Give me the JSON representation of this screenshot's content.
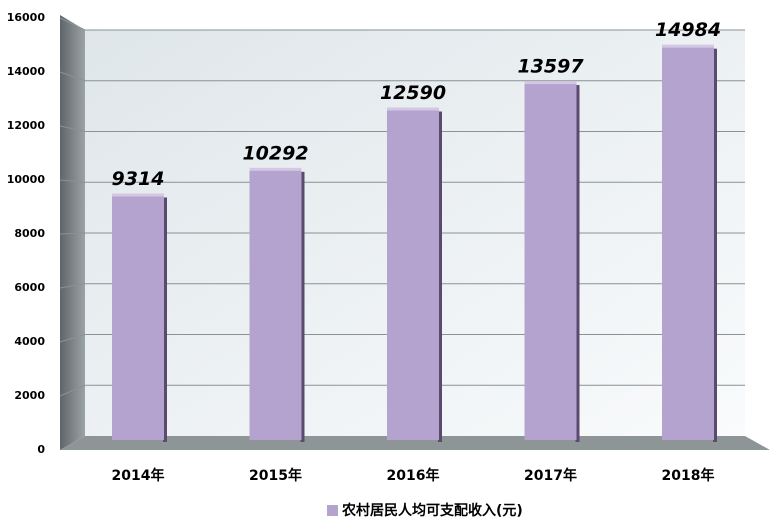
{
  "chart_data": {
    "type": "bar",
    "categories": [
      "2014年",
      "2015年",
      "2016年",
      "2017年",
      "2018年"
    ],
    "series": [
      {
        "name": "农村居民人均可支配收入(元)",
        "color": "#b5a3cf",
        "values": [
          9314,
          10292,
          12590,
          13597,
          14984
        ]
      }
    ],
    "ylim": [
      0,
      16000
    ],
    "yticks": [
      0,
      2000,
      4000,
      6000,
      8000,
      10000,
      12000,
      14000,
      16000
    ],
    "grid": true,
    "legend": "bottom"
  }
}
